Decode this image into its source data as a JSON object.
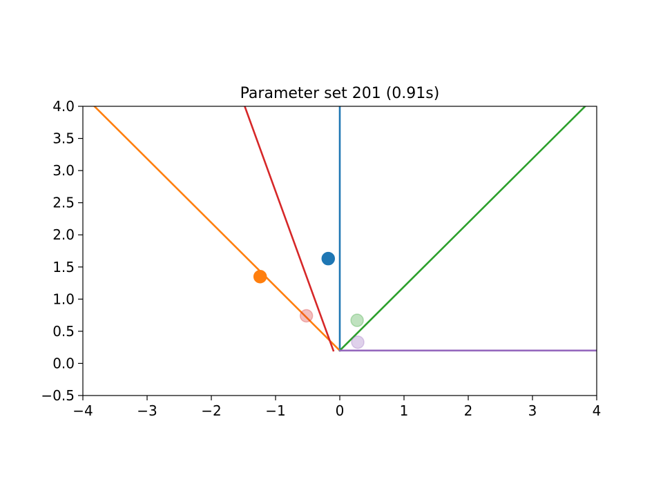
{
  "chart_data": {
    "type": "line",
    "title": "Parameter set 201 (0.91s)",
    "xlabel": "",
    "ylabel": "",
    "xlim": [
      -4,
      4
    ],
    "ylim": [
      -0.5,
      4.0
    ],
    "grid": false,
    "x_ticks": [
      -4,
      -3,
      -2,
      -1,
      0,
      1,
      2,
      3,
      4
    ],
    "x_tick_labels": [
      "−4",
      "−3",
      "−2",
      "−1",
      "0",
      "1",
      "2",
      "3",
      "4"
    ],
    "y_ticks": [
      -0.5,
      0.0,
      0.5,
      1.0,
      1.5,
      2.0,
      2.5,
      3.0,
      3.5,
      4.0
    ],
    "y_tick_labels": [
      "−0.5",
      "0.0",
      "0.5",
      "1.0",
      "1.5",
      "2.0",
      "2.5",
      "3.0",
      "3.5",
      "4.0"
    ],
    "lines": [
      {
        "color": "#1f77b4",
        "x": [
          0.0,
          0.0
        ],
        "y": [
          0.2,
          4.0
        ]
      },
      {
        "color": "#ff7f0e",
        "x": [
          0.0,
          -3.82
        ],
        "y": [
          0.2,
          4.0
        ]
      },
      {
        "color": "#2ca02c",
        "x": [
          0.0,
          3.82
        ],
        "y": [
          0.2,
          4.0
        ]
      },
      {
        "color": "#d62728",
        "x": [
          -0.1,
          -1.48
        ],
        "y": [
          0.2,
          4.0
        ]
      },
      {
        "color": "#9467bd",
        "x": [
          0.0,
          4.0
        ],
        "y": [
          0.2,
          0.2
        ]
      }
    ],
    "points": [
      {
        "color": "#1f77b4",
        "x": -0.18,
        "y": 1.63,
        "alpha": 1.0
      },
      {
        "color": "#ff7f0e",
        "x": -1.24,
        "y": 1.35,
        "alpha": 1.0
      },
      {
        "color": "#d62728",
        "x": -0.52,
        "y": 0.74,
        "alpha": 0.3
      },
      {
        "color": "#2ca02c",
        "x": 0.27,
        "y": 0.67,
        "alpha": 0.3
      },
      {
        "color": "#9467bd",
        "x": 0.28,
        "y": 0.33,
        "alpha": 0.3
      }
    ]
  }
}
